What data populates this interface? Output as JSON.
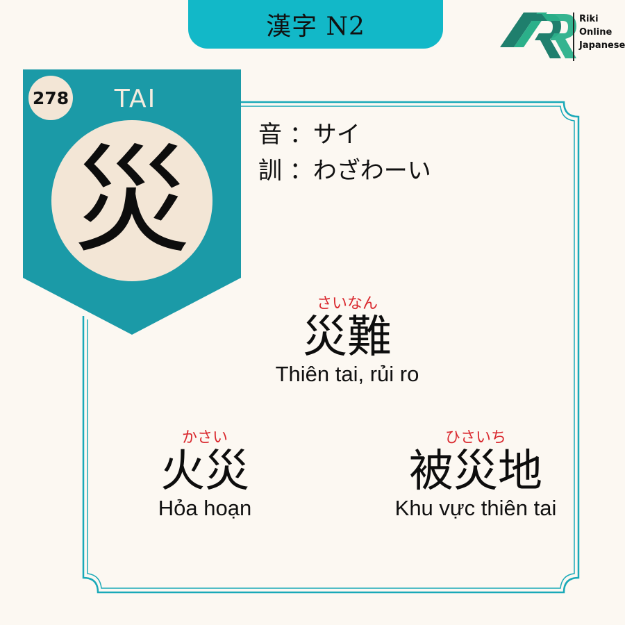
{
  "header": {
    "title": "漢字 N2"
  },
  "logo": {
    "lines": [
      "Riki",
      "Online",
      "Japanese"
    ]
  },
  "card": {
    "number": "278",
    "reading": "TAI",
    "kanji": "災",
    "on_reading": "音 ：サイ",
    "kun_reading": "訓 ：わざわーい"
  },
  "vocab": [
    {
      "furigana": "さいなん",
      "word": "災難",
      "meaning": "Thiên tai, rủi ro"
    },
    {
      "furigana": "かさい",
      "word": "火災",
      "meaning": "Hỏa hoạn"
    },
    {
      "furigana": "ひさいち",
      "word": "被災地",
      "meaning": "Khu vực thiên tai"
    }
  ],
  "colors": {
    "accent": "#12b8c8",
    "banner": "#1b9aa7",
    "cream": "#f3e6d6",
    "furigana": "#d9262c",
    "background": "#fcf8f2"
  }
}
